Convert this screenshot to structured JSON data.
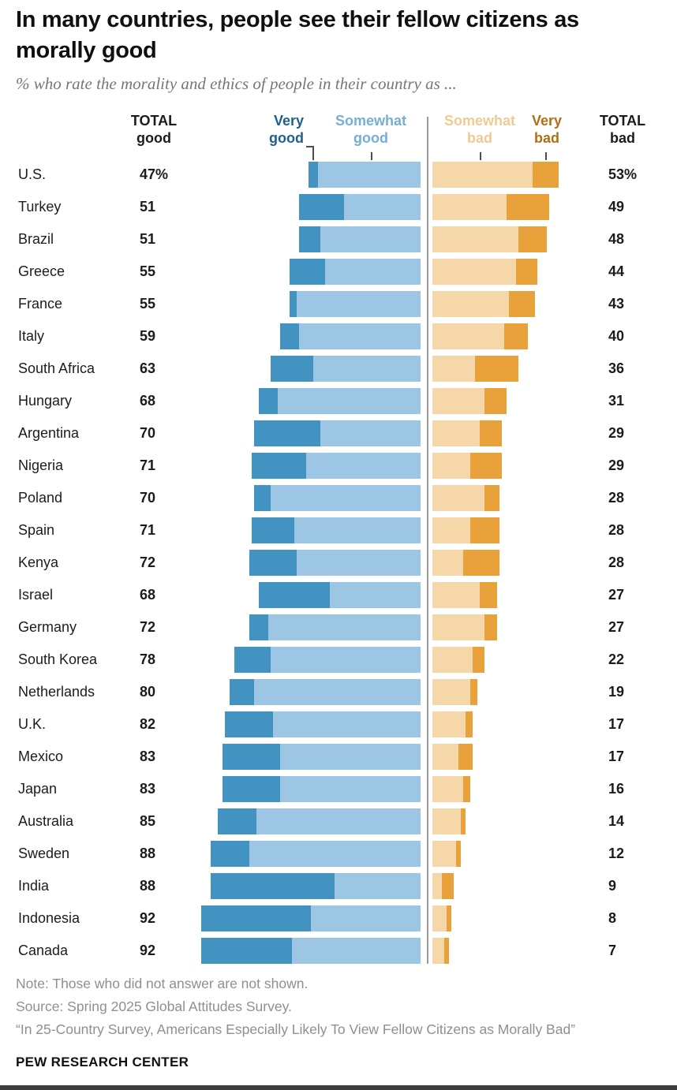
{
  "title": "In many countries, people see their fellow citizens as morally good",
  "subtitle": "% who rate the morality and ethics of people in their country as ...",
  "legend": {
    "total_good": {
      "line1": "TOTAL",
      "line2": "good"
    },
    "very_good": {
      "line1": "Very",
      "line2": "good"
    },
    "somewhat_good": {
      "line1": "Somewhat",
      "line2": "good"
    },
    "somewhat_bad": {
      "line1": "Somewhat",
      "line2": "bad"
    },
    "very_bad": {
      "line1": "Very",
      "line2": "bad"
    },
    "total_bad": {
      "line1": "TOTAL",
      "line2": "bad"
    }
  },
  "colors": {
    "very_good": "#4292C2",
    "somewhat_good": "#9CC6E3",
    "somewhat_bad": "#F5D7A9",
    "very_bad": "#E9A23B",
    "very_good_label": "#20608D",
    "somewhat_good_label": "#74AFD7",
    "somewhat_bad_label": "#EFCB93",
    "very_bad_label": "#B06E16"
  },
  "chart_data": {
    "type": "bar",
    "variant": "diverging-stacked-horizontal",
    "title": "In many countries, people see their fellow citizens as morally good",
    "series_order": [
      "Very good",
      "Somewhat good",
      "Somewhat bad",
      "Very bad"
    ],
    "units": "percent",
    "rows": [
      {
        "country": "U.S.",
        "total_good": "47%",
        "very_good": 4,
        "somewhat_good": 43,
        "somewhat_bad": 42,
        "very_bad": 11,
        "total_bad": "53%"
      },
      {
        "country": "Turkey",
        "total_good": "51",
        "very_good": 19,
        "somewhat_good": 32,
        "somewhat_bad": 31,
        "very_bad": 18,
        "total_bad": "49"
      },
      {
        "country": "Brazil",
        "total_good": "51",
        "very_good": 9,
        "somewhat_good": 42,
        "somewhat_bad": 36,
        "very_bad": 12,
        "total_bad": "48"
      },
      {
        "country": "Greece",
        "total_good": "55",
        "very_good": 15,
        "somewhat_good": 40,
        "somewhat_bad": 35,
        "very_bad": 9,
        "total_bad": "44"
      },
      {
        "country": "France",
        "total_good": "55",
        "very_good": 3,
        "somewhat_good": 52,
        "somewhat_bad": 32,
        "very_bad": 11,
        "total_bad": "43"
      },
      {
        "country": "Italy",
        "total_good": "59",
        "very_good": 8,
        "somewhat_good": 51,
        "somewhat_bad": 30,
        "very_bad": 10,
        "total_bad": "40"
      },
      {
        "country": "South Africa",
        "total_good": "63",
        "very_good": 18,
        "somewhat_good": 45,
        "somewhat_bad": 18,
        "very_bad": 18,
        "total_bad": "36"
      },
      {
        "country": "Hungary",
        "total_good": "68",
        "very_good": 8,
        "somewhat_good": 60,
        "somewhat_bad": 22,
        "very_bad": 9,
        "total_bad": "31"
      },
      {
        "country": "Argentina",
        "total_good": "70",
        "very_good": 28,
        "somewhat_good": 42,
        "somewhat_bad": 20,
        "very_bad": 9,
        "total_bad": "29"
      },
      {
        "country": "Nigeria",
        "total_good": "71",
        "very_good": 23,
        "somewhat_good": 48,
        "somewhat_bad": 16,
        "very_bad": 13,
        "total_bad": "29"
      },
      {
        "country": "Poland",
        "total_good": "70",
        "very_good": 7,
        "somewhat_good": 63,
        "somewhat_bad": 22,
        "very_bad": 6,
        "total_bad": "28"
      },
      {
        "country": "Spain",
        "total_good": "71",
        "very_good": 18,
        "somewhat_good": 53,
        "somewhat_bad": 16,
        "very_bad": 12,
        "total_bad": "28"
      },
      {
        "country": "Kenya",
        "total_good": "72",
        "very_good": 20,
        "somewhat_good": 52,
        "somewhat_bad": 13,
        "very_bad": 15,
        "total_bad": "28"
      },
      {
        "country": "Israel",
        "total_good": "68",
        "very_good": 30,
        "somewhat_good": 38,
        "somewhat_bad": 20,
        "very_bad": 7,
        "total_bad": "27"
      },
      {
        "country": "Germany",
        "total_good": "72",
        "very_good": 8,
        "somewhat_good": 64,
        "somewhat_bad": 22,
        "very_bad": 5,
        "total_bad": "27"
      },
      {
        "country": "South Korea",
        "total_good": "78",
        "very_good": 15,
        "somewhat_good": 63,
        "somewhat_bad": 17,
        "very_bad": 5,
        "total_bad": "22"
      },
      {
        "country": "Netherlands",
        "total_good": "80",
        "very_good": 10,
        "somewhat_good": 70,
        "somewhat_bad": 16,
        "very_bad": 3,
        "total_bad": "19"
      },
      {
        "country": "U.K.",
        "total_good": "82",
        "very_good": 20,
        "somewhat_good": 62,
        "somewhat_bad": 14,
        "very_bad": 3,
        "total_bad": "17"
      },
      {
        "country": "Mexico",
        "total_good": "83",
        "very_good": 24,
        "somewhat_good": 59,
        "somewhat_bad": 11,
        "very_bad": 6,
        "total_bad": "17"
      },
      {
        "country": "Japan",
        "total_good": "83",
        "very_good": 24,
        "somewhat_good": 59,
        "somewhat_bad": 13,
        "very_bad": 3,
        "total_bad": "16"
      },
      {
        "country": "Australia",
        "total_good": "85",
        "very_good": 16,
        "somewhat_good": 69,
        "somewhat_bad": 12,
        "very_bad": 2,
        "total_bad": "14"
      },
      {
        "country": "Sweden",
        "total_good": "88",
        "very_good": 16,
        "somewhat_good": 72,
        "somewhat_bad": 10,
        "very_bad": 2,
        "total_bad": "12"
      },
      {
        "country": "India",
        "total_good": "88",
        "very_good": 52,
        "somewhat_good": 36,
        "somewhat_bad": 4,
        "very_bad": 5,
        "total_bad": "9"
      },
      {
        "country": "Indonesia",
        "total_good": "92",
        "very_good": 46,
        "somewhat_good": 46,
        "somewhat_bad": 6,
        "very_bad": 2,
        "total_bad": "8"
      },
      {
        "country": "Canada",
        "total_good": "92",
        "very_good": 38,
        "somewhat_good": 54,
        "somewhat_bad": 5,
        "very_bad": 2,
        "total_bad": "7"
      }
    ]
  },
  "footer": {
    "note": "Note: Those who did not answer are not shown.",
    "source": "Source: Spring 2025 Global Attitudes Survey.",
    "report": "“In 25-Country Survey, Americans Especially Likely To View Fellow Citizens as Morally Bad”",
    "brand": "PEW RESEARCH CENTER"
  }
}
